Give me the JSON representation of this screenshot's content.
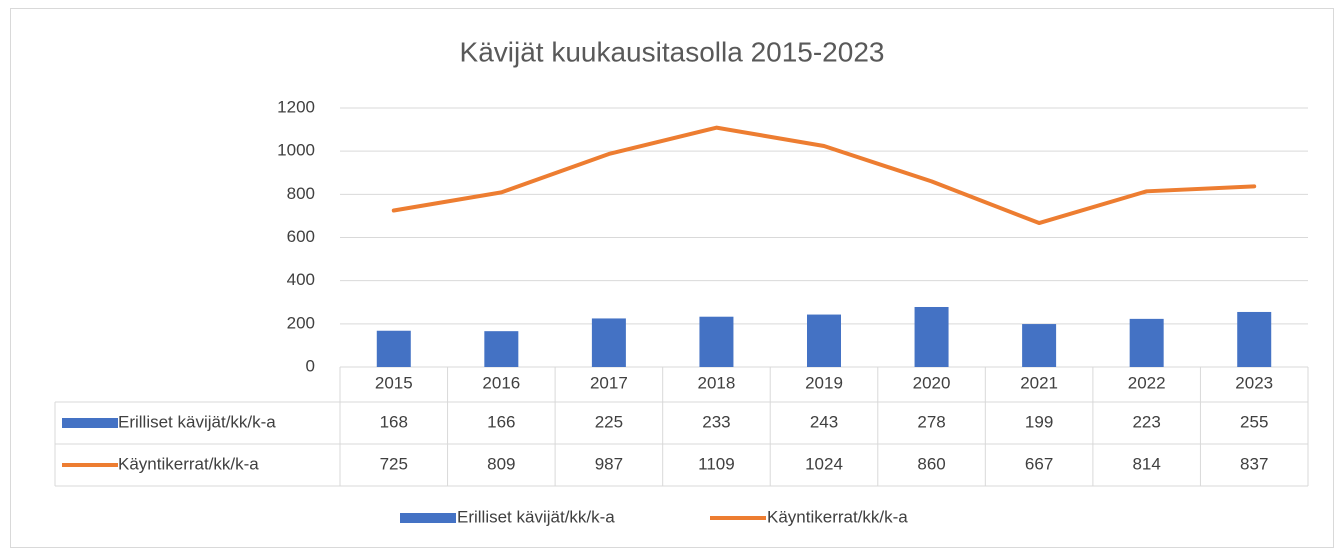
{
  "chart_data": {
    "type": "combo",
    "title": "Kävijät kuukausitasolla 2015-2023",
    "categories": [
      "2015",
      "2016",
      "2017",
      "2018",
      "2019",
      "2020",
      "2021",
      "2022",
      "2023"
    ],
    "series": [
      {
        "name": "Erilliset kävijät/kk/k-a",
        "type": "bar",
        "color": "#4472c4",
        "values": [
          168,
          166,
          225,
          233,
          243,
          278,
          199,
          223,
          255
        ]
      },
      {
        "name": "Käyntikerrat/kk/k-a",
        "type": "line",
        "color": "#ed7d31",
        "values": [
          725,
          809,
          987,
          1109,
          1024,
          860,
          667,
          814,
          837
        ]
      }
    ],
    "ylim": [
      0,
      1200
    ],
    "yticks": [
      0,
      200,
      400,
      600,
      800,
      1000,
      1200
    ],
    "grid": true,
    "data_table": true,
    "legend": "bottom"
  }
}
